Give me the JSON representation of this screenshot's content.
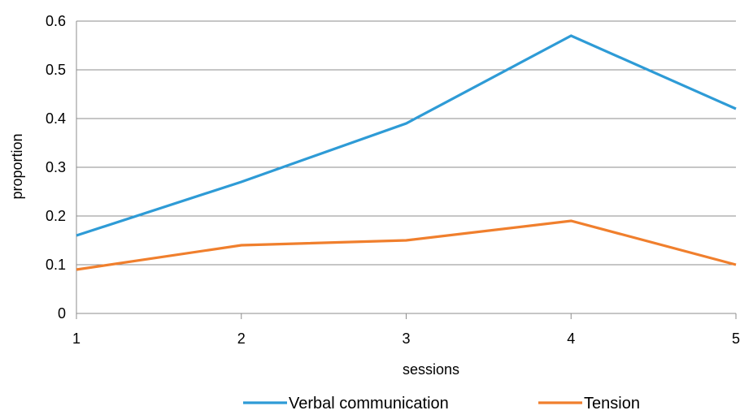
{
  "chart_data": {
    "type": "line",
    "x": [
      "1",
      "2",
      "3",
      "4",
      "5"
    ],
    "xlabel": "sessions",
    "ylabel": "proportion",
    "ylim": [
      0,
      0.6
    ],
    "yticks": [
      "0",
      "0.1",
      "0.2",
      "0.3",
      "0.4",
      "0.5",
      "0.6"
    ],
    "grid": "horizontal",
    "legend": "bottom",
    "series": [
      {
        "name": "Verbal communication",
        "color": "#2E9BD6",
        "values": [
          0.16,
          0.27,
          0.39,
          0.57,
          0.42
        ]
      },
      {
        "name": "Tension",
        "color": "#F07F2D",
        "values": [
          0.09,
          0.14,
          0.15,
          0.19,
          0.1
        ]
      }
    ]
  }
}
